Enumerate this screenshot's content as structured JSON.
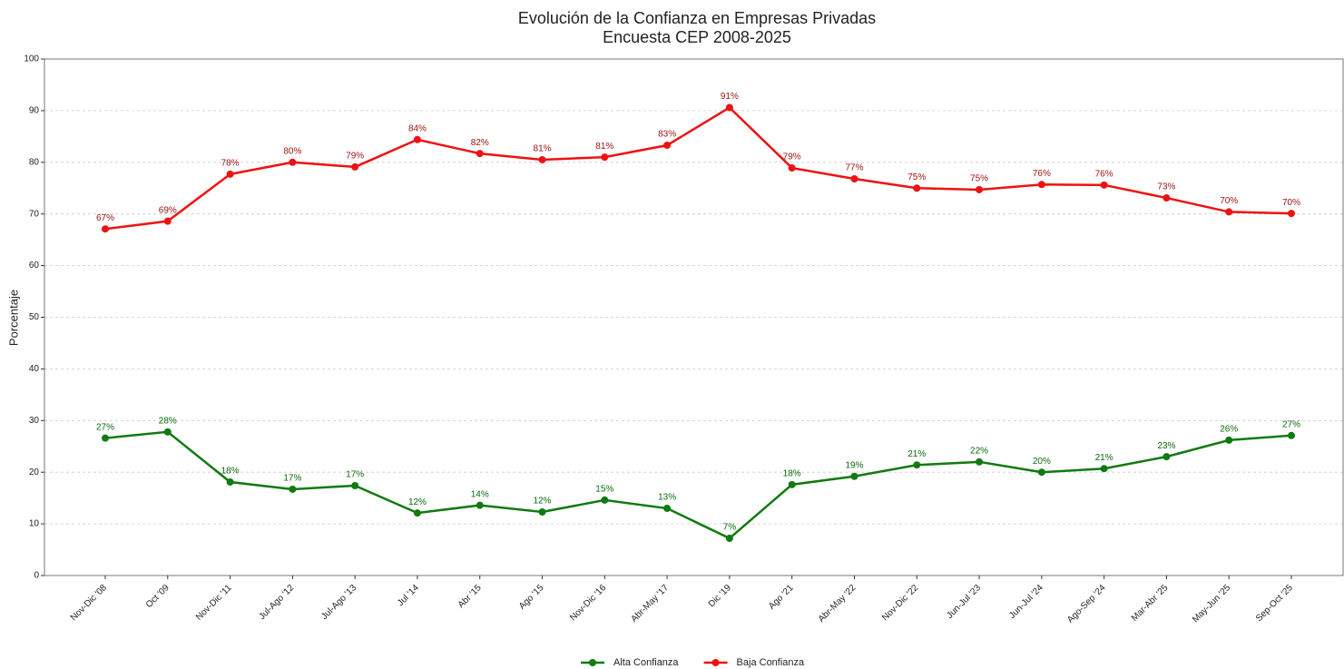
{
  "chart_data": {
    "type": "line",
    "title": "Evolución de la Confianza en Empresas Privadas",
    "subtitle": "Encuesta CEP 2008-2025",
    "y_label": "Porcentaje",
    "categories": [
      "Nov-Dic '08",
      "Oct '09",
      "Nov-Dic '11",
      "Jul-Ago '12",
      "Jul-Ago '13",
      "Jul '14",
      "Abr '15",
      "Ago '15",
      "Nov-Dic '16",
      "Abr-May '17",
      "Dic '19",
      "Ago '21",
      "Abr-May '22",
      "Nov-Dic '22",
      "Jun-Jul '23",
      "Jun-Jul '24",
      "Ago-Sep '24",
      "Mar-Abr '25",
      "May-Jun '25",
      "Sep-Oct '25"
    ],
    "series": [
      {
        "name": "Alta Confianza",
        "color": "#117a11",
        "label_color": "#0a6a0a",
        "values": [
          26.6,
          27.8,
          18.1,
          16.7,
          17.4,
          12.1,
          13.6,
          12.3,
          14.6,
          13.0,
          7.2,
          17.6,
          19.2,
          21.4,
          22.0,
          20.0,
          20.7,
          23.0,
          26.2,
          27.1
        ],
        "value_labels": [
          "27%",
          "28%",
          "18%",
          "17%",
          "17%",
          "12%",
          "14%",
          "12%",
          "15%",
          "13%",
          "7%",
          "18%",
          "19%",
          "21%",
          "22%",
          "20%",
          "21%",
          "23%",
          "26%",
          "27%"
        ]
      },
      {
        "name": "Baja Confianza",
        "color": "#ee1111",
        "label_color": "#9a1010",
        "values": [
          67.1,
          68.6,
          77.7,
          80.0,
          79.1,
          84.4,
          81.7,
          80.5,
          81.0,
          83.3,
          90.6,
          78.9,
          76.8,
          75.0,
          74.7,
          75.7,
          75.6,
          73.1,
          70.4,
          70.1
        ],
        "value_labels": [
          "67%",
          "69%",
          "78%",
          "80%",
          "79%",
          "84%",
          "82%",
          "81%",
          "81%",
          "83%",
          "91%",
          "79%",
          "77%",
          "75%",
          "75%",
          "76%",
          "76%",
          "73%",
          "70%",
          "70%"
        ]
      }
    ],
    "ylim": [
      0,
      100
    ],
    "yticks": [
      0,
      10,
      20,
      30,
      40,
      50,
      60,
      70,
      80,
      90,
      100
    ],
    "grid": true,
    "legend": "bottom"
  }
}
